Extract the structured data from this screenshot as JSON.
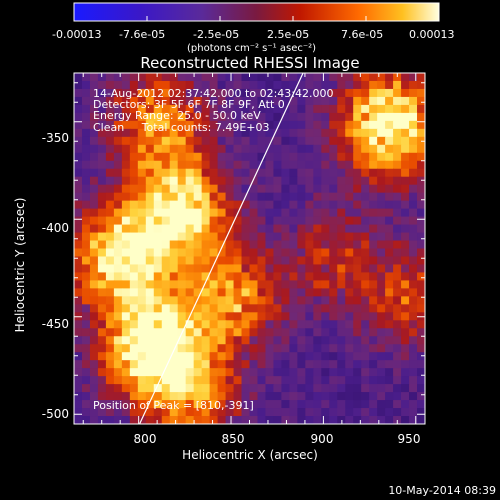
{
  "colorbar": {
    "tick_labels": [
      "-0.00013",
      "-7.6e-05",
      "-2.5e-05",
      "2.5e-05",
      "7.6e-05",
      "0.00013"
    ],
    "unit_label": "(photons cm⁻² s⁻¹ asec⁻²)",
    "range": [
      -0.00013,
      0.00013
    ]
  },
  "chart_data": {
    "type": "heatmap",
    "title": "Reconstructed RHESSI Image",
    "xlabel": "Heliocentric X (arcsec)",
    "ylabel": "Heliocentric Y (arcsec)",
    "xlim": [
      765,
      955
    ],
    "ylim": [
      -505,
      -325
    ],
    "x_ticks": [
      "800",
      "850",
      "900",
      "950"
    ],
    "y_ticks": [
      "-350",
      "-400",
      "-450",
      "-500"
    ],
    "annotations": [
      "14-Aug-2012 02:37:42.000 to 02:43:42.000",
      "Detectors: 3F 5F 6F 7F 8F 9F, Att 0",
      "Energy Range: 25.0 - 50.0 keV",
      "Clean     Total counts: 7.49E+03"
    ],
    "peak_label": "Position of Peak = [810,-391]",
    "peak": [
      810,
      -391
    ],
    "limb_line": [
      [
        800,
        -506
      ],
      [
        889,
        -325
      ]
    ],
    "hotspots": [
      {
        "x": 808,
        "y": -465,
        "intensity": 1.0
      },
      {
        "x": 790,
        "y": -420,
        "intensity": 0.8
      },
      {
        "x": 822,
        "y": -395,
        "intensity": 0.85
      },
      {
        "x": 935,
        "y": -352,
        "intensity": 0.9
      },
      {
        "x": 850,
        "y": -440,
        "intensity": 0.55
      },
      {
        "x": 810,
        "y": -350,
        "intensity": 0.5
      },
      {
        "x": 830,
        "y": -490,
        "intensity": 0.45
      },
      {
        "x": 905,
        "y": -420,
        "intensity": 0.3
      },
      {
        "x": 945,
        "y": -440,
        "intensity": 0.35
      }
    ]
  },
  "timestamp": "10-May-2014 08:39"
}
